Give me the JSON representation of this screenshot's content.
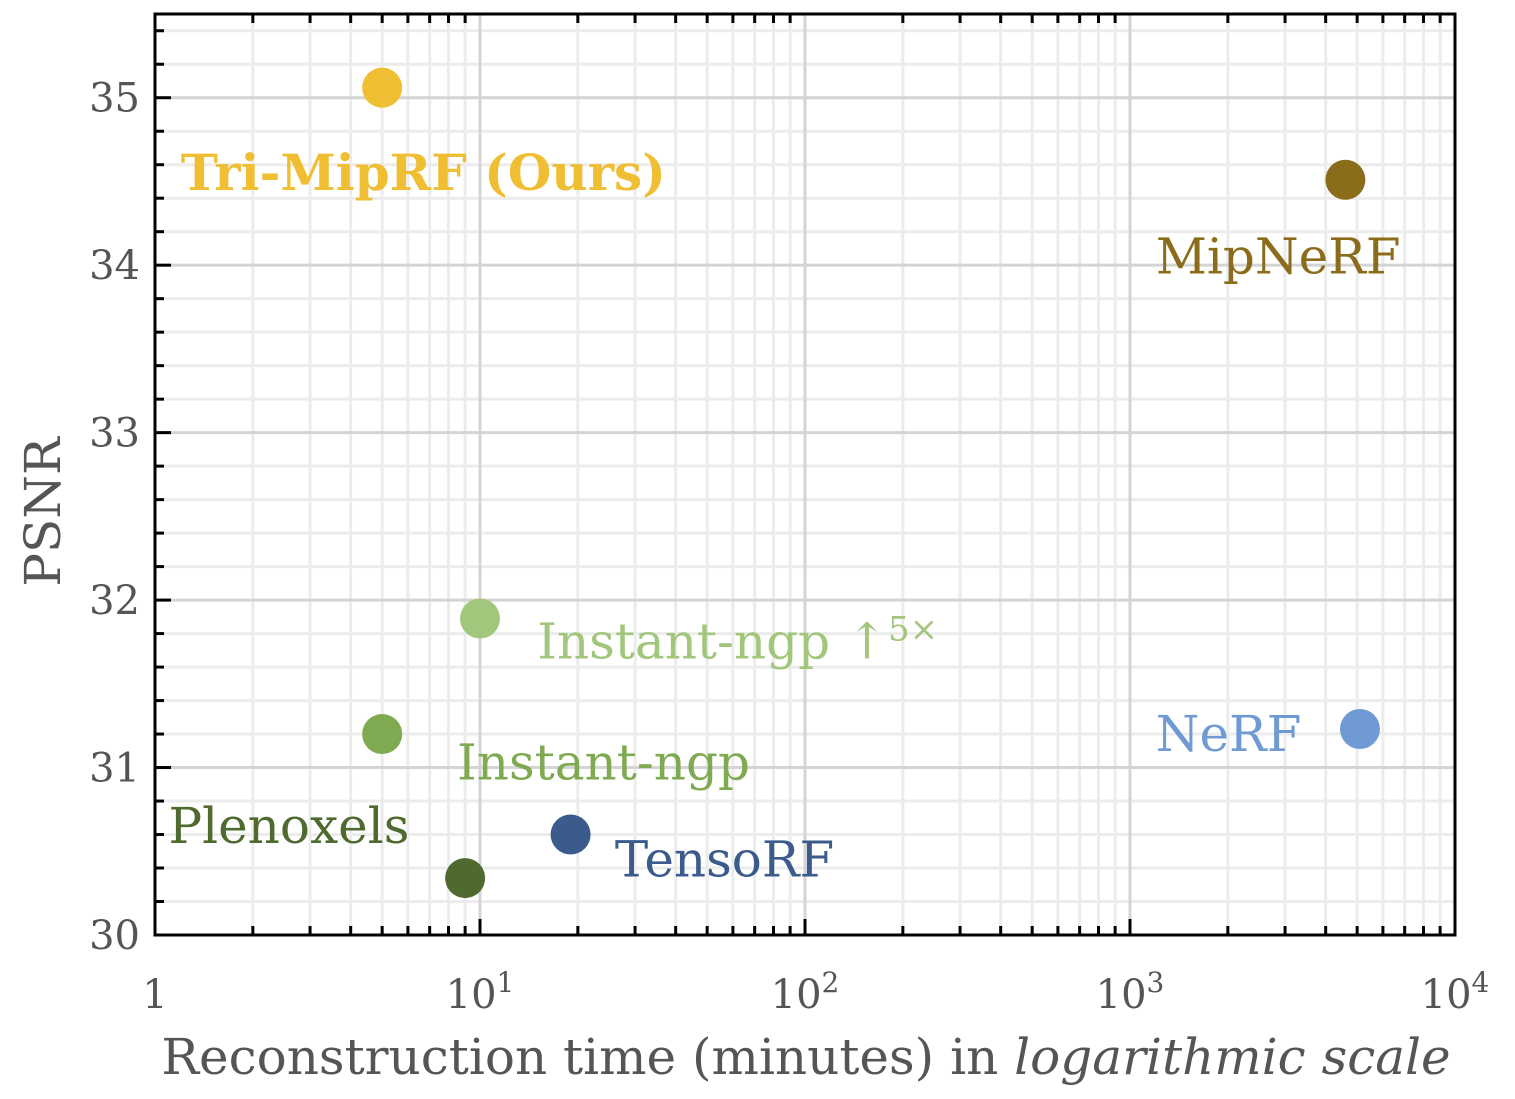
{
  "chart_data": {
    "type": "scatter",
    "xscale": "log",
    "xlim": [
      1,
      10000
    ],
    "ylim": [
      30,
      35.5
    ],
    "grid": true,
    "xlabel_main": "Reconstruction time (minutes) in ",
    "xlabel_italic": "logarithmic scale",
    "ylabel": "PSNR",
    "x_ticks": [
      {
        "value": 1,
        "base": "1",
        "exp": ""
      },
      {
        "value": 10,
        "base": "10",
        "exp": "1"
      },
      {
        "value": 100,
        "base": "10",
        "exp": "2"
      },
      {
        "value": 1000,
        "base": "10",
        "exp": "3"
      },
      {
        "value": 10000,
        "base": "10",
        "exp": "4"
      }
    ],
    "y_ticks": [
      {
        "value": 30,
        "label": "30"
      },
      {
        "value": 31,
        "label": "31"
      },
      {
        "value": 32,
        "label": "32"
      },
      {
        "value": 33,
        "label": "33"
      },
      {
        "value": 34,
        "label": "34"
      },
      {
        "value": 35,
        "label": "35"
      }
    ],
    "points": [
      {
        "name": "Tri-MipRF (Ours)",
        "label_sup": "",
        "x": 5,
        "y": 35.06,
        "color": "#F0BE33",
        "bold": true,
        "label_anchor": "start",
        "label_x": 1.2,
        "label_y": 34.45
      },
      {
        "name": "MipNeRF",
        "label_sup": "",
        "x": 4600,
        "y": 34.51,
        "color": "#8B6C1A",
        "bold": false,
        "label_anchor": "start",
        "label_x": 1200,
        "label_y": 33.95
      },
      {
        "name": "Instant-ngp ",
        "label_sup": "5×",
        "x": 10,
        "y": 31.89,
        "color": "#A2C67C",
        "bold": false,
        "label_anchor": "start",
        "label_x": 15,
        "label_y": 31.65
      },
      {
        "name": "Instant-ngp",
        "label_sup": "",
        "x": 5,
        "y": 31.2,
        "color": "#7FAA52",
        "bold": false,
        "label_anchor": "start",
        "label_x": 8.5,
        "label_y": 30.93
      },
      {
        "name": "NeRF",
        "label_sup": "",
        "x": 5100,
        "y": 31.23,
        "color": "#6F9AD3",
        "bold": false,
        "label_anchor": "start",
        "label_x": 1200,
        "label_y": 31.1
      },
      {
        "name": "TensoRF",
        "label_sup": "",
        "x": 19,
        "y": 30.6,
        "color": "#3B5B8D",
        "bold": false,
        "label_anchor": "start",
        "label_x": 26,
        "label_y": 30.35
      },
      {
        "name": "Plenoxels",
        "label_sup": "",
        "x": 9,
        "y": 30.34,
        "color": "#4E6A2E",
        "bold": false,
        "label_anchor": "start",
        "label_x": 1.1,
        "label_y": 30.55
      }
    ]
  }
}
